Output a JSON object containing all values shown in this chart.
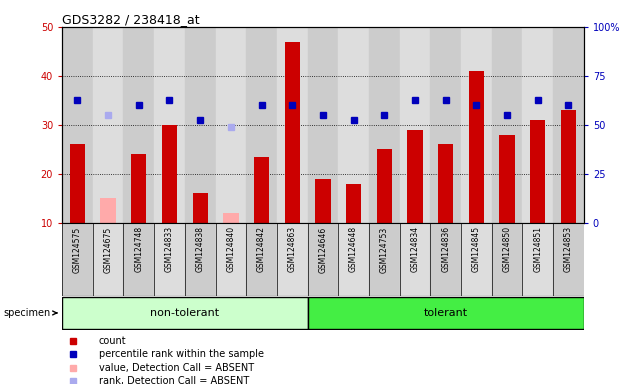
{
  "title": "GDS3282 / 238418_at",
  "specimens": [
    "GSM124575",
    "GSM124675",
    "GSM124748",
    "GSM124833",
    "GSM124838",
    "GSM124840",
    "GSM124842",
    "GSM124863",
    "GSM124646",
    "GSM124648",
    "GSM124753",
    "GSM124834",
    "GSM124836",
    "GSM124845",
    "GSM124850",
    "GSM124851",
    "GSM124853"
  ],
  "group_labels": [
    "non-tolerant",
    "tolerant"
  ],
  "non_tolerant_count": 8,
  "tolerant_count": 9,
  "red_bars": [
    26,
    0,
    24,
    30,
    16,
    0,
    23.5,
    47,
    19,
    18,
    25,
    29,
    26,
    41,
    28,
    31,
    33
  ],
  "pink_bars": [
    0,
    15,
    0,
    0,
    0,
    12,
    0,
    0,
    0,
    0,
    0,
    0,
    0,
    0,
    0,
    0,
    0
  ],
  "blue_squares": [
    35,
    0,
    34,
    35,
    31,
    0,
    34,
    34,
    32,
    31,
    32,
    35,
    35,
    34,
    32,
    35,
    34
  ],
  "light_blue_squares": [
    0,
    32,
    0,
    0,
    0,
    29.5,
    0,
    0,
    0,
    0,
    0,
    0,
    0,
    0,
    0,
    0,
    0
  ],
  "absent_indices": [
    1,
    5
  ],
  "ylim_left": [
    10,
    50
  ],
  "ylim_right": [
    0,
    100
  ],
  "yticks_left": [
    10,
    20,
    30,
    40,
    50
  ],
  "yticks_right": [
    0,
    25,
    50,
    75,
    100
  ],
  "ytick_labels_right": [
    "0",
    "25",
    "50",
    "75",
    "100%"
  ],
  "bar_color_red": "#cc0000",
  "bar_color_pink": "#ffaaaa",
  "square_color_blue": "#0000bb",
  "square_color_lightblue": "#aaaaee",
  "group0_color": "#ccffcc",
  "group1_color": "#44ee44",
  "col_bg_even": "#cccccc",
  "col_bg_odd": "#dddddd",
  "plot_bg": "#ffffff",
  "legend_items": [
    {
      "label": "count",
      "color": "#cc0000"
    },
    {
      "label": "percentile rank within the sample",
      "color": "#0000bb"
    },
    {
      "label": "value, Detection Call = ABSENT",
      "color": "#ffaaaa"
    },
    {
      "label": "rank, Detection Call = ABSENT",
      "color": "#aaaaee"
    }
  ]
}
